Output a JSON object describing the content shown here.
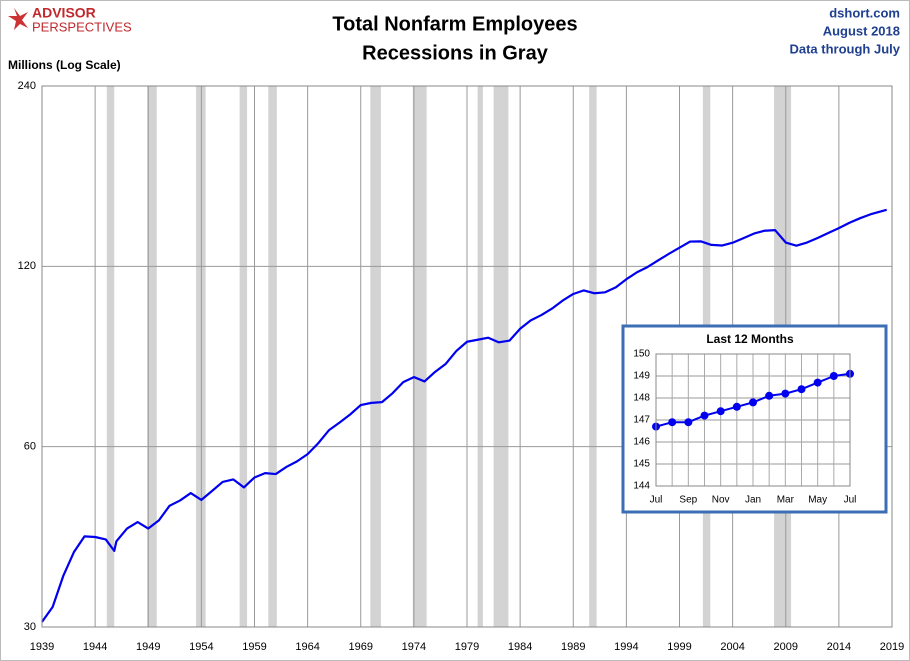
{
  "logo": {
    "line1": "ADVISOR",
    "line2": "PERSPECTIVES"
  },
  "header": {
    "site": "dshort.com",
    "date": "August 2018",
    "note": "Data through July"
  },
  "chart_data": [
    {
      "type": "line",
      "title": "Total Nonfarm Employees",
      "subtitle": "Recessions in Gray",
      "ylabel": "Millions (Log Scale)",
      "log_scale": true,
      "grid": true,
      "color": "#0000ee",
      "x": [
        1939,
        1940,
        1941,
        1942,
        1943,
        1944,
        1945,
        1945.8,
        1946,
        1947,
        1948,
        1949,
        1950,
        1951,
        1952,
        1953,
        1954,
        1955,
        1956,
        1957,
        1958,
        1959,
        1960,
        1961,
        1962,
        1963,
        1964,
        1965,
        1966,
        1967,
        1968,
        1969,
        1970,
        1971,
        1972,
        1973,
        1974,
        1975,
        1976,
        1977,
        1978,
        1979,
        1980,
        1981,
        1982,
        1983,
        1984,
        1985,
        1986,
        1987,
        1988,
        1989,
        1990,
        1991,
        1992,
        1993,
        1994,
        1995,
        1996,
        1997,
        1998,
        1999,
        2000,
        2001,
        2002,
        2003,
        2004,
        2005,
        2006,
        2007,
        2008,
        2009,
        2010,
        2011,
        2012,
        2013,
        2014,
        2015,
        2016,
        2017,
        2018.5
      ],
      "values": [
        30.6,
        32.4,
        36.5,
        40,
        42.5,
        42.4,
        42,
        40.2,
        41.7,
        43.8,
        44.9,
        43.8,
        45.2,
        47.8,
        48.8,
        50.2,
        48.9,
        50.6,
        52.4,
        52.9,
        51.3,
        53.3,
        54.2,
        54,
        55.5,
        56.7,
        58.3,
        60.8,
        63.9,
        65.8,
        67.9,
        70.4,
        71,
        71.2,
        73.7,
        76.9,
        78.4,
        77.1,
        80,
        82.5,
        86.7,
        89.8,
        90.5,
        91.2,
        89.6,
        90.2,
        94.4,
        97.5,
        99.5,
        102,
        105.2,
        107.9,
        109.4,
        108.2,
        108.6,
        110.7,
        114.2,
        117.3,
        119.7,
        122.8,
        125.9,
        128.9,
        132,
        132.1,
        130.3,
        130,
        131.4,
        133.7,
        136.1,
        137.6,
        137.9,
        131.5,
        129.9,
        131.5,
        133.8,
        136.4,
        139,
        141.9,
        144.4,
        146.6,
        149.1
      ],
      "recessions": [
        [
          1945.1,
          1945.8
        ],
        [
          1948.9,
          1949.8
        ],
        [
          1953.5,
          1954.4
        ],
        [
          1957.6,
          1958.3
        ],
        [
          1960.3,
          1961.1
        ],
        [
          1969.9,
          1970.9
        ],
        [
          1973.9,
          1975.2
        ],
        [
          1980,
          1980.5
        ],
        [
          1981.5,
          1982.9
        ],
        [
          1990.5,
          1991.2
        ],
        [
          2001.2,
          2001.9
        ],
        [
          2007.9,
          2009.5
        ]
      ],
      "xlim": [
        1939,
        2019
      ],
      "xticks": [
        1939,
        1944,
        1949,
        1954,
        1959,
        1964,
        1969,
        1974,
        1979,
        1984,
        1989,
        1994,
        1999,
        2004,
        2009,
        2014,
        2019
      ],
      "ylim": [
        30,
        240
      ],
      "yticks": [
        30,
        60,
        120,
        240
      ]
    },
    {
      "type": "line",
      "title": "Last 12 Months",
      "grid": true,
      "color": "#0000ee",
      "markers": true,
      "categories": [
        "Jul",
        null,
        "Sep",
        null,
        "Nov",
        null,
        "Jan",
        null,
        "Mar",
        null,
        "May",
        null,
        "Jul"
      ],
      "values": [
        146.7,
        146.9,
        146.9,
        147.2,
        147.4,
        147.6,
        147.8,
        148.1,
        148.2,
        148.4,
        148.7,
        149.0,
        149.1
      ],
      "ylim": [
        144,
        150
      ],
      "yticks": [
        144,
        145,
        146,
        147,
        148,
        149,
        150
      ]
    }
  ]
}
